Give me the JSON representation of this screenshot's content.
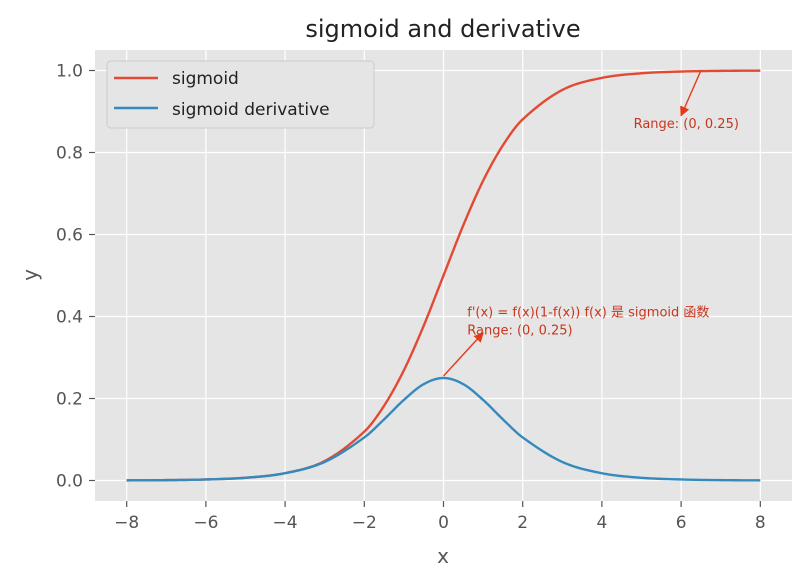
{
  "chart_data": {
    "type": "line",
    "title": "sigmoid and derivative",
    "xlabel": "x",
    "ylabel": "y",
    "xlim": [
      -8.8,
      8.8
    ],
    "ylim": [
      -0.05,
      1.05
    ],
    "xticks": [
      -8,
      -6,
      -4,
      -2,
      0,
      2,
      4,
      6,
      8
    ],
    "xtick_labels": [
      "−8",
      "−6",
      "−4",
      "−2",
      "0",
      "2",
      "4",
      "6",
      "8"
    ],
    "yticks": [
      0.0,
      0.2,
      0.4,
      0.6,
      0.8,
      1.0
    ],
    "ytick_labels": [
      "0.0",
      "0.2",
      "0.4",
      "0.6",
      "0.8",
      "1.0"
    ],
    "grid": true,
    "legend_position": "upper-left",
    "x": [
      -8,
      -7,
      -6,
      -5,
      -4,
      -3,
      -2,
      -1.5,
      -1,
      -0.5,
      0,
      0.5,
      1,
      1.5,
      2,
      3,
      4,
      5,
      6,
      7,
      8
    ],
    "series": [
      {
        "name": "sigmoid",
        "color": "#E24A33",
        "values": [
          0.0003,
          0.0009,
          0.0025,
          0.0067,
          0.018,
          0.0474,
          0.1192,
          0.1824,
          0.2689,
          0.3775,
          0.5,
          0.6225,
          0.7311,
          0.8176,
          0.8808,
          0.9526,
          0.982,
          0.9933,
          0.9975,
          0.9991,
          0.9997
        ]
      },
      {
        "name": "sigmoid derivative",
        "color": "#348ABD",
        "values": [
          0.0003,
          0.0009,
          0.0025,
          0.0066,
          0.0177,
          0.0452,
          0.105,
          0.1491,
          0.1966,
          0.235,
          0.25,
          0.235,
          0.1966,
          0.1491,
          0.105,
          0.0452,
          0.0177,
          0.0066,
          0.0025,
          0.0009,
          0.0003
        ]
      }
    ],
    "annotations": [
      {
        "lines": [
          "f'(x) = f(x)(1-f(x)) f(x) 是 sigmoid 函数",
          "Range: (0, 0.25)"
        ],
        "point": [
          0,
          0.25
        ],
        "text_pos": [
          1.0,
          0.36
        ],
        "color": "#c8361e"
      },
      {
        "lines": [
          "Range: (0, 0.25)"
        ],
        "point": [
          6.0,
          0.89
        ],
        "text_pos": [
          6.5,
          1.0
        ],
        "color": "#c8361e"
      }
    ]
  }
}
